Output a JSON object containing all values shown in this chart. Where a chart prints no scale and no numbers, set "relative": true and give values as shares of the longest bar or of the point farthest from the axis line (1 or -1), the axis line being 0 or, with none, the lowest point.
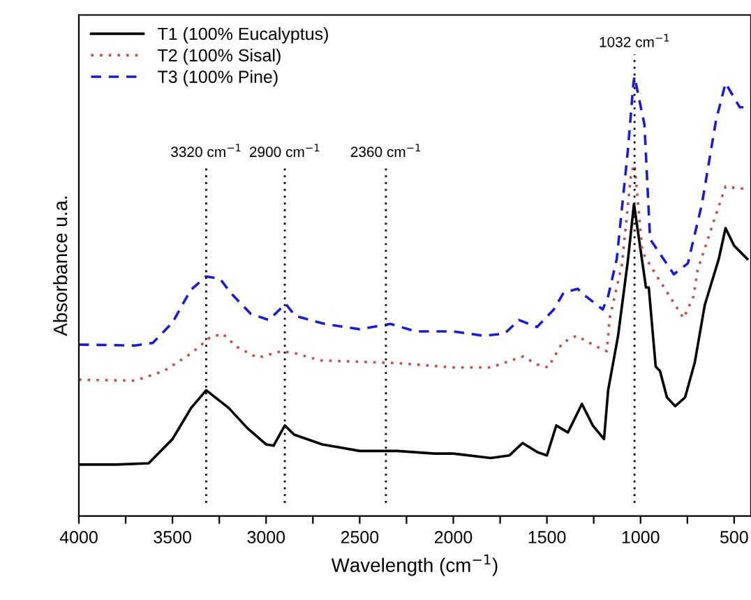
{
  "chart_data": {
    "type": "line",
    "relative": true,
    "xlabel": "Wavelength (cm$^{−1}$)",
    "ylabel": "Absorbance u.a.",
    "xlim": [
      4000,
      410
    ],
    "xticks": [
      4000,
      {
        "value": 3750,
        "label": null
      },
      3500,
      {
        "value": 3250,
        "label": null
      },
      3000,
      {
        "value": 2750,
        "label": null
      },
      2500,
      {
        "value": 2250,
        "label": null
      },
      2000,
      {
        "value": 1750,
        "label": null
      },
      1500,
      {
        "value": 1250,
        "label": null
      },
      1000,
      {
        "value": 750,
        "label": null
      },
      500
    ],
    "legend": "top left",
    "grid": false,
    "series": [
      {
        "name": "T1 (100% Eucalyptus)",
        "color": "#000000",
        "line_style": "solid",
        "x": [
          4000,
          3800,
          3627,
          3500,
          3400,
          3320,
          3200,
          3100,
          3000,
          2960,
          2900,
          2850,
          2700,
          2500,
          2300,
          2100,
          2000,
          1800,
          1700,
          1630,
          1550,
          1500,
          1450,
          1388,
          1313,
          1255,
          1195,
          1173,
          1120,
          1068,
          1035,
          971,
          956,
          919,
          896,
          859,
          815,
          762,
          710,
          657,
          582,
          546,
          500,
          430
        ],
        "values": [
          0.117,
          0.117,
          0.12,
          0.175,
          0.246,
          0.286,
          0.246,
          0.2,
          0.163,
          0.16,
          0.206,
          0.185,
          0.163,
          0.148,
          0.148,
          0.142,
          0.142,
          0.132,
          0.138,
          0.166,
          0.145,
          0.138,
          0.206,
          0.19,
          0.255,
          0.206,
          0.175,
          0.286,
          0.41,
          0.58,
          0.71,
          0.52,
          0.52,
          0.34,
          0.33,
          0.27,
          0.25,
          0.27,
          0.35,
          0.48,
          0.585,
          0.655,
          0.615,
          0.585
        ]
      },
      {
        "name": "T2 (100% Sisal)",
        "color": "#c0504d",
        "line_style": "dotted",
        "x": [
          4000,
          3700,
          3545,
          3400,
          3300,
          3232,
          3157,
          3045,
          2918,
          2843,
          2709,
          2300,
          2000,
          1800,
          1628,
          1553,
          1493,
          1418,
          1343,
          1232,
          1180,
          1165,
          1100,
          1050,
          1032,
          990,
          919,
          770,
          717,
          695,
          597,
          546,
          470,
          430
        ],
        "values": [
          0.31,
          0.308,
          0.33,
          0.37,
          0.406,
          0.415,
          0.385,
          0.36,
          0.375,
          0.37,
          0.354,
          0.348,
          0.338,
          0.338,
          0.363,
          0.345,
          0.338,
          0.394,
          0.41,
          0.385,
          0.375,
          0.45,
          0.57,
          0.78,
          0.8,
          0.6,
          0.55,
          0.45,
          0.5,
          0.56,
          0.686,
          0.75,
          0.745,
          0.745
        ]
      },
      {
        "name": "T3 (100% Pine)",
        "color": "#1c1ccc",
        "line_style": "dashed",
        "x": [
          4000,
          3700,
          3605,
          3500,
          3403,
          3321,
          3246,
          3190,
          3082,
          2985,
          2896,
          2843,
          2687,
          2500,
          2336,
          2200,
          2000,
          1837,
          1725,
          1650,
          1553,
          1463,
          1411,
          1336,
          1292,
          1202,
          1173,
          1127,
          1068,
          1038,
          1032,
          979,
          949,
          822,
          747,
          672,
          597,
          546,
          470,
          430
        ],
        "values": [
          0.39,
          0.388,
          0.394,
          0.44,
          0.514,
          0.545,
          0.54,
          0.508,
          0.46,
          0.446,
          0.483,
          0.455,
          0.437,
          0.425,
          0.437,
          0.42,
          0.42,
          0.41,
          0.415,
          0.446,
          0.43,
          0.47,
          0.508,
          0.517,
          0.5,
          0.47,
          0.5,
          0.585,
          0.83,
          0.985,
          1.0,
          0.89,
          0.63,
          0.55,
          0.575,
          0.71,
          0.9,
          0.985,
          0.93,
          0.93
        ]
      }
    ],
    "ref_lines": [
      {
        "axis": "x",
        "value": 3320,
        "label": "3320 cm$^{−1}$",
        "color": "#000000",
        "line_style": "dotted"
      },
      {
        "axis": "x",
        "value": 2900,
        "label": "2900 cm$^{−1}$",
        "color": "#000000",
        "line_style": "dotted"
      },
      {
        "axis": "x",
        "value": 2360,
        "label": "2360 cm$^{−1}$",
        "color": "#000000",
        "line_style": "dotted"
      },
      {
        "axis": "x",
        "value": 1032,
        "label": "1032 cm$^{−1}$",
        "color": "#000000",
        "line_style": "dotted"
      }
    ]
  }
}
